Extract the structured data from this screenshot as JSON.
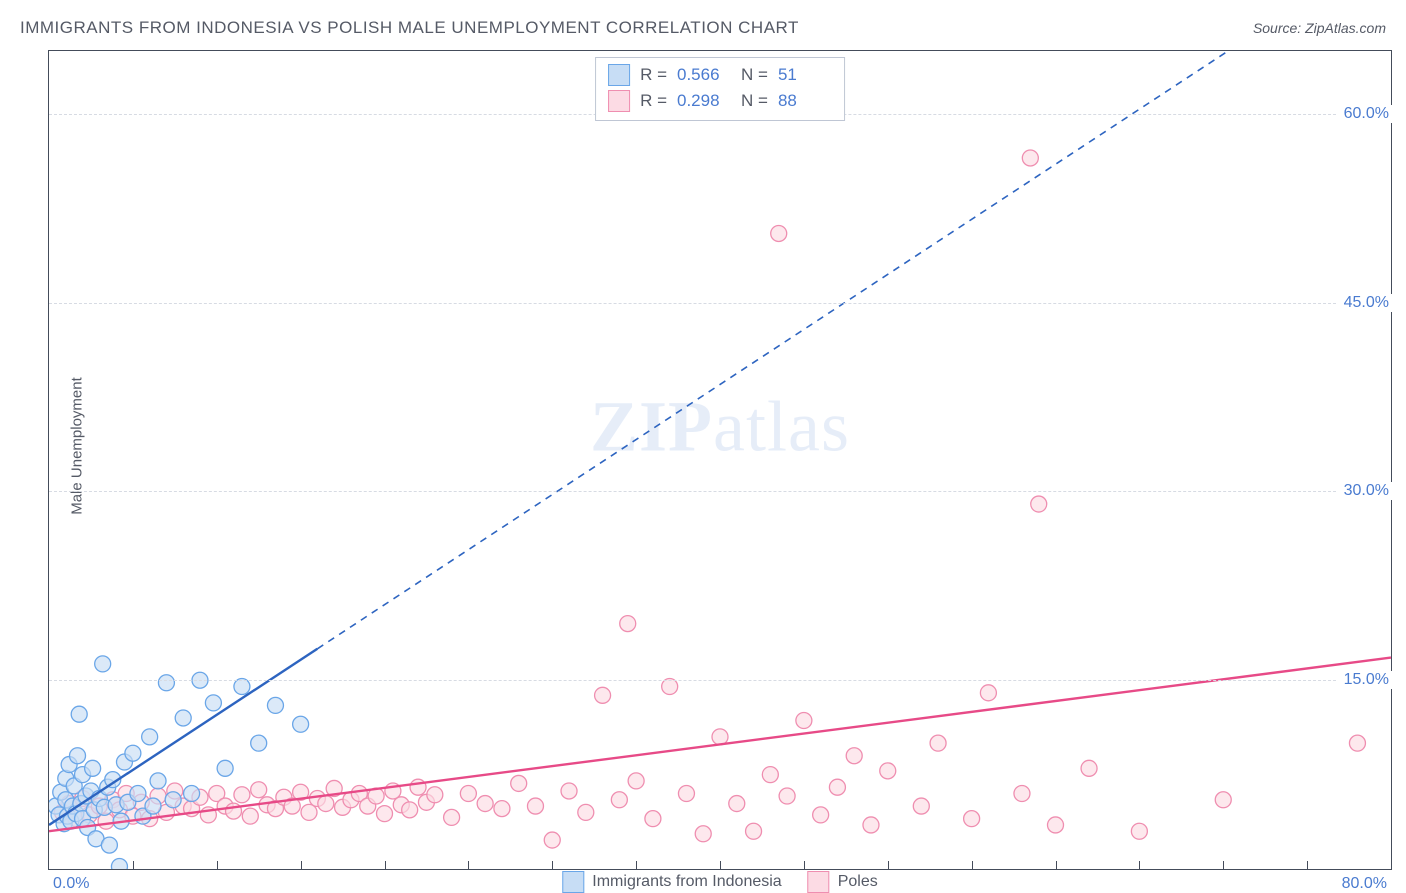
{
  "header": {
    "title": "IMMIGRANTS FROM INDONESIA VS POLISH MALE UNEMPLOYMENT CORRELATION CHART",
    "source_label": "Source:",
    "source_value": "ZipAtlas.com"
  },
  "watermark": {
    "bold": "ZIP",
    "rest": "atlas"
  },
  "chart": {
    "type": "scatter",
    "background_color": "#ffffff",
    "border_color": "#444c5a",
    "grid_color": "#d7dbe3",
    "text_color": "#555a66",
    "accent_color": "#4a7bd0",
    "ylabel": "Male Unemployment",
    "ylabel_fontsize": 15,
    "xlim": [
      0,
      80
    ],
    "ylim": [
      0,
      65
    ],
    "yticks": [
      15,
      30,
      45,
      60
    ],
    "ytick_labels": [
      "15.0%",
      "30.0%",
      "45.0%",
      "60.0%"
    ],
    "xtick_left": "0.0%",
    "xtick_right": "80.0%",
    "xtick_marks": [
      5,
      10,
      15,
      20,
      25,
      30,
      35,
      40,
      45,
      50,
      55,
      60,
      65,
      70,
      75
    ],
    "marker_radius": 8,
    "marker_stroke_width": 1.3,
    "trend_solid_width": 2.4,
    "trend_dash": "7 6",
    "series": [
      {
        "id": "indonesia",
        "label": "Immigrants from Indonesia",
        "fill": "#c7ddf5",
        "stroke": "#6aa6e8",
        "trend_color": "#2d64c0",
        "R": "0.566",
        "N": "51",
        "trend": {
          "x1": 0,
          "y1": 3.5,
          "x2": 16,
          "y2": 17.5,
          "x_dash_end": 80,
          "y_dash_end": 73.5
        },
        "points": [
          [
            0.4,
            5.0
          ],
          [
            0.6,
            4.3
          ],
          [
            0.7,
            6.1
          ],
          [
            0.9,
            3.6
          ],
          [
            1.0,
            5.5
          ],
          [
            1.0,
            7.2
          ],
          [
            1.1,
            4.2
          ],
          [
            1.2,
            8.3
          ],
          [
            1.3,
            3.8
          ],
          [
            1.4,
            5.0
          ],
          [
            1.5,
            6.6
          ],
          [
            1.6,
            4.4
          ],
          [
            1.7,
            9.0
          ],
          [
            1.8,
            12.3
          ],
          [
            1.9,
            5.2
          ],
          [
            2.0,
            4.0
          ],
          [
            2.0,
            7.5
          ],
          [
            2.2,
            5.8
          ],
          [
            2.3,
            3.3
          ],
          [
            2.5,
            6.2
          ],
          [
            2.6,
            8.0
          ],
          [
            2.7,
            4.7
          ],
          [
            2.8,
            2.4
          ],
          [
            3.0,
            5.6
          ],
          [
            3.2,
            16.3
          ],
          [
            3.3,
            4.9
          ],
          [
            3.5,
            6.5
          ],
          [
            3.6,
            1.9
          ],
          [
            3.8,
            7.1
          ],
          [
            4.0,
            5.1
          ],
          [
            4.2,
            0.2
          ],
          [
            4.3,
            3.8
          ],
          [
            4.5,
            8.5
          ],
          [
            4.7,
            5.3
          ],
          [
            5.0,
            9.2
          ],
          [
            5.3,
            6.0
          ],
          [
            5.6,
            4.2
          ],
          [
            6.0,
            10.5
          ],
          [
            6.2,
            5.0
          ],
          [
            6.5,
            7.0
          ],
          [
            7.0,
            14.8
          ],
          [
            7.4,
            5.5
          ],
          [
            8.0,
            12.0
          ],
          [
            8.5,
            6.0
          ],
          [
            9.0,
            15.0
          ],
          [
            9.8,
            13.2
          ],
          [
            10.5,
            8.0
          ],
          [
            11.5,
            14.5
          ],
          [
            12.5,
            10.0
          ],
          [
            13.5,
            13.0
          ],
          [
            15.0,
            11.5
          ]
        ]
      },
      {
        "id": "poles",
        "label": "Poles",
        "fill": "#fcdbe4",
        "stroke": "#ef8eb0",
        "trend_color": "#e74a87",
        "R": "0.298",
        "N": "88",
        "trend": {
          "x1": 0,
          "y1": 3.0,
          "x2": 80,
          "y2": 16.8
        },
        "points": [
          [
            0.8,
            4.5
          ],
          [
            1.2,
            5.2
          ],
          [
            1.6,
            4.0
          ],
          [
            2.0,
            5.6
          ],
          [
            2.4,
            4.3
          ],
          [
            3.0,
            5.0
          ],
          [
            3.4,
            3.8
          ],
          [
            3.8,
            5.5
          ],
          [
            4.2,
            4.7
          ],
          [
            4.6,
            6.0
          ],
          [
            5.0,
            4.2
          ],
          [
            5.5,
            5.3
          ],
          [
            6.0,
            4.0
          ],
          [
            6.5,
            5.8
          ],
          [
            7.0,
            4.5
          ],
          [
            7.5,
            6.2
          ],
          [
            8.0,
            5.0
          ],
          [
            8.5,
            4.8
          ],
          [
            9.0,
            5.7
          ],
          [
            9.5,
            4.3
          ],
          [
            10.0,
            6.0
          ],
          [
            10.5,
            5.0
          ],
          [
            11.0,
            4.6
          ],
          [
            11.5,
            5.9
          ],
          [
            12.0,
            4.2
          ],
          [
            12.5,
            6.3
          ],
          [
            13.0,
            5.1
          ],
          [
            13.5,
            4.8
          ],
          [
            14.0,
            5.7
          ],
          [
            14.5,
            5.0
          ],
          [
            15.0,
            6.1
          ],
          [
            15.5,
            4.5
          ],
          [
            16.0,
            5.6
          ],
          [
            16.5,
            5.2
          ],
          [
            17.0,
            6.4
          ],
          [
            17.5,
            4.9
          ],
          [
            18.0,
            5.5
          ],
          [
            18.5,
            6.0
          ],
          [
            19.0,
            5.0
          ],
          [
            19.5,
            5.8
          ],
          [
            20.0,
            4.4
          ],
          [
            20.5,
            6.2
          ],
          [
            21.0,
            5.1
          ],
          [
            21.5,
            4.7
          ],
          [
            22.0,
            6.5
          ],
          [
            22.5,
            5.3
          ],
          [
            23.0,
            5.9
          ],
          [
            24.0,
            4.1
          ],
          [
            25.0,
            6.0
          ],
          [
            26.0,
            5.2
          ],
          [
            27.0,
            4.8
          ],
          [
            28.0,
            6.8
          ],
          [
            29.0,
            5.0
          ],
          [
            30.0,
            2.3
          ],
          [
            31.0,
            6.2
          ],
          [
            32.0,
            4.5
          ],
          [
            33.0,
            13.8
          ],
          [
            34.0,
            5.5
          ],
          [
            34.5,
            19.5
          ],
          [
            35.0,
            7.0
          ],
          [
            36.0,
            4.0
          ],
          [
            37.0,
            14.5
          ],
          [
            38.0,
            6.0
          ],
          [
            39.0,
            2.8
          ],
          [
            40.0,
            10.5
          ],
          [
            41.0,
            5.2
          ],
          [
            42.0,
            3.0
          ],
          [
            43.0,
            7.5
          ],
          [
            44.0,
            5.8
          ],
          [
            45.0,
            11.8
          ],
          [
            46.0,
            4.3
          ],
          [
            47.0,
            6.5
          ],
          [
            48.0,
            9.0
          ],
          [
            49.0,
            3.5
          ],
          [
            50.0,
            7.8
          ],
          [
            52.0,
            5.0
          ],
          [
            53.0,
            10.0
          ],
          [
            55.0,
            4.0
          ],
          [
            56.0,
            14.0
          ],
          [
            58.0,
            6.0
          ],
          [
            59.0,
            29.0
          ],
          [
            60.0,
            3.5
          ],
          [
            62.0,
            8.0
          ],
          [
            65.0,
            3.0
          ],
          [
            43.5,
            50.5
          ],
          [
            58.5,
            56.5
          ],
          [
            70.0,
            5.5
          ],
          [
            78.0,
            10.0
          ]
        ]
      }
    ]
  }
}
